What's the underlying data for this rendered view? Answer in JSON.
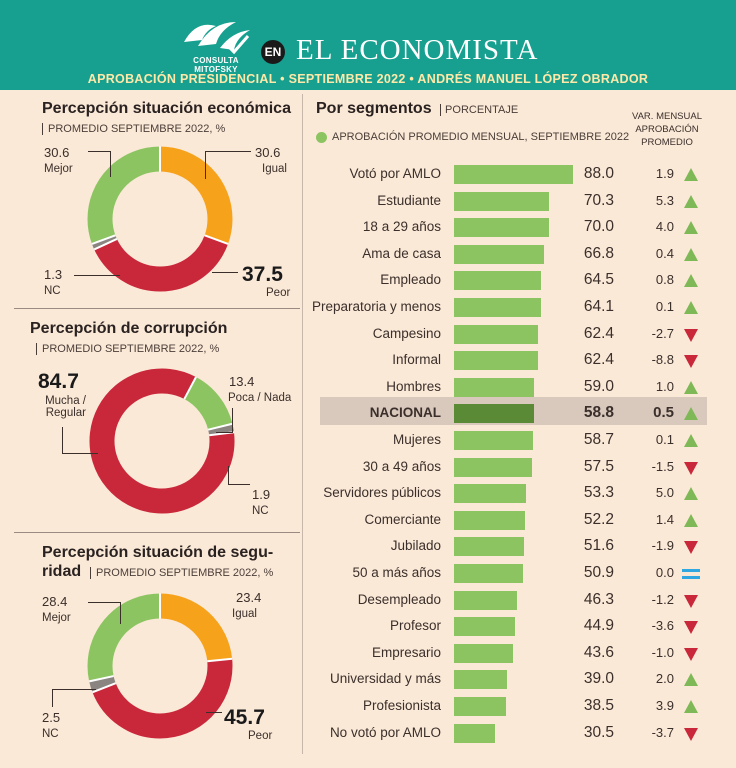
{
  "header": {
    "logo_text": "CONSULTA MITOFSKY",
    "en_badge": "EN",
    "brand": "EL ECONOMISTA",
    "subtitle": "APROBACIÓN PRESIDENCIAL • SEPTIEMBRE 2022 • ANDRÉS MANUEL LÓPEZ OBRADOR"
  },
  "colors": {
    "header_bg": "#17a08f",
    "page_bg": "#fbe9d8",
    "green": "#8cc462",
    "orange": "#f7a21b",
    "red": "#c9283a",
    "gray": "#8a8580",
    "nacional_bar": "#5a8a35",
    "up_arrow": "#7fb957",
    "down_arrow": "#c9283a",
    "equal": "#2fa7e0"
  },
  "segments_header": {
    "title": "Por segmentos",
    "unit": "PORCENTAJE",
    "legend": "APROBACIÓN PROMEDIO MENSUAL, SEPTIEMBRE 2022",
    "var_header": [
      "VAR. MENSUAL",
      "APROBACIÓN",
      "PROMEDIO"
    ]
  },
  "chart_data": [
    {
      "type": "pie",
      "title": "Percepción situación económica",
      "subtitle": "PROMEDIO SEPTIEMBRE 2022, %",
      "slices": [
        {
          "label": "Igual",
          "value": 30.6,
          "color": "#f7a21b"
        },
        {
          "label": "Peor",
          "value": 37.5,
          "color": "#c9283a"
        },
        {
          "label": "NC",
          "value": 1.3,
          "color": "#8a8580"
        },
        {
          "label": "Mejor",
          "value": 30.6,
          "color": "#8cc462"
        }
      ]
    },
    {
      "type": "pie",
      "title": "Percepción de corrupción",
      "subtitle": "PROMEDIO SEPTIEMBRE 2022, %",
      "slices": [
        {
          "label": "Poca / Nada",
          "value": 13.4,
          "color": "#8cc462"
        },
        {
          "label": "NC",
          "value": 1.9,
          "color": "#8a8580"
        },
        {
          "label": "Mucha / Regular",
          "value": 84.7,
          "color": "#c9283a"
        }
      ]
    },
    {
      "type": "pie",
      "title_line1": "Percepción situación de segu-",
      "title_line2": "ridad",
      "subtitle": "PROMEDIO SEPTIEMBRE 2022, %",
      "slices": [
        {
          "label": "Igual",
          "value": 23.4,
          "color": "#f7a21b"
        },
        {
          "label": "Peor",
          "value": 45.7,
          "color": "#c9283a"
        },
        {
          "label": "NC",
          "value": 2.5,
          "color": "#8a8580"
        },
        {
          "label": "Mejor",
          "value": 28.4,
          "color": "#8cc462"
        }
      ]
    },
    {
      "type": "bar",
      "title": "Por segmentos",
      "unit": "PORCENTAJE",
      "xlim": [
        0,
        100
      ],
      "categories": [
        "Votó por AMLO",
        "Estudiante",
        "18 a 29 años",
        "Ama de casa",
        "Empleado",
        "Preparatoria y menos",
        "Campesino",
        "Informal",
        "Hombres",
        "NACIONAL",
        "Mujeres",
        "30 a 49 años",
        "Servidores públicos",
        "Comerciante",
        "Jubilado",
        "50 a más años",
        "Desempleado",
        "Profesor",
        "Empresario",
        "Universidad y más",
        "Profesionista",
        "No votó por AMLO"
      ],
      "values": [
        88.0,
        70.3,
        70.0,
        66.8,
        64.5,
        64.1,
        62.4,
        62.4,
        59.0,
        58.8,
        58.7,
        57.5,
        53.3,
        52.2,
        51.6,
        50.9,
        46.3,
        44.9,
        43.6,
        39.0,
        38.5,
        30.5
      ],
      "value_labels": [
        "88.0",
        "70.3",
        "70.0",
        "66.8",
        "64.5",
        "64.1",
        "62.4",
        "62.4",
        "59.0",
        "58.8",
        "58.7",
        "57.5",
        "53.3",
        "52.2",
        "51.6",
        "50.9",
        "46.3",
        "44.9",
        "43.6",
        "39.0",
        "38.5",
        "30.5"
      ],
      "var_labels": [
        "1.9",
        "5.3",
        "4.0",
        "0.4",
        "0.8",
        "0.1",
        "-2.7",
        "-8.8",
        "1.0",
        "0.5",
        "0.1",
        "-1.5",
        "5.0",
        "1.4",
        "-1.9",
        "0.0",
        "-1.2",
        "-3.6",
        "-1.0",
        "2.0",
        "3.9",
        "-3.7"
      ],
      "directions": [
        "up",
        "up",
        "up",
        "up",
        "up",
        "up",
        "down",
        "down",
        "up",
        "up",
        "up",
        "down",
        "up",
        "up",
        "down",
        "equal",
        "down",
        "down",
        "down",
        "up",
        "up",
        "down"
      ],
      "highlight": "NACIONAL"
    }
  ]
}
